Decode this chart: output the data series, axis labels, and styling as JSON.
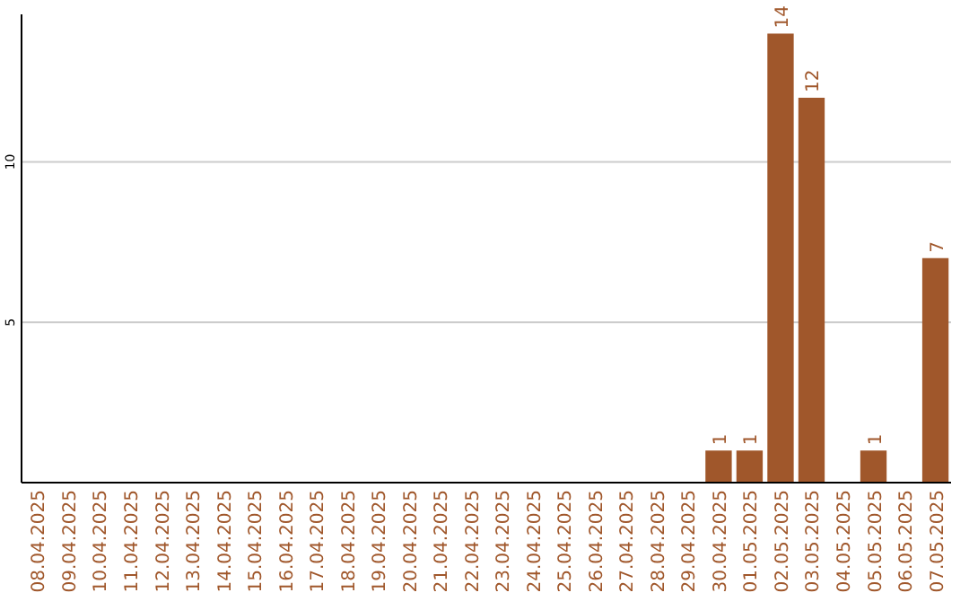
{
  "chart_data": {
    "type": "bar",
    "categories": [
      "08.04.2025",
      "09.04.2025",
      "10.04.2025",
      "11.04.2025",
      "12.04.2025",
      "13.04.2025",
      "14.04.2025",
      "15.04.2025",
      "16.04.2025",
      "17.04.2025",
      "18.04.2025",
      "19.04.2025",
      "20.04.2025",
      "21.04.2025",
      "22.04.2025",
      "23.04.2025",
      "24.04.2025",
      "25.04.2025",
      "26.04.2025",
      "27.04.2025",
      "28.04.2025",
      "29.04.2025",
      "30.04.2025",
      "01.05.2025",
      "02.05.2025",
      "03.05.2025",
      "04.05.2025",
      "05.05.2025",
      "06.05.2025",
      "07.05.2025"
    ],
    "values": [
      0,
      0,
      0,
      0,
      0,
      0,
      0,
      0,
      0,
      0,
      0,
      0,
      0,
      0,
      0,
      0,
      0,
      0,
      0,
      0,
      0,
      0,
      1,
      1,
      14,
      12,
      0,
      1,
      0,
      7
    ],
    "value_labels": [
      null,
      null,
      null,
      null,
      null,
      null,
      null,
      null,
      null,
      null,
      null,
      null,
      null,
      null,
      null,
      null,
      null,
      null,
      null,
      null,
      null,
      null,
      "1",
      "1",
      "14",
      "12",
      null,
      "1",
      null,
      "7"
    ],
    "color": "#a0572b",
    "ylim": [
      0,
      14.6
    ],
    "yticks": [
      5,
      10
    ],
    "grid": "y"
  }
}
